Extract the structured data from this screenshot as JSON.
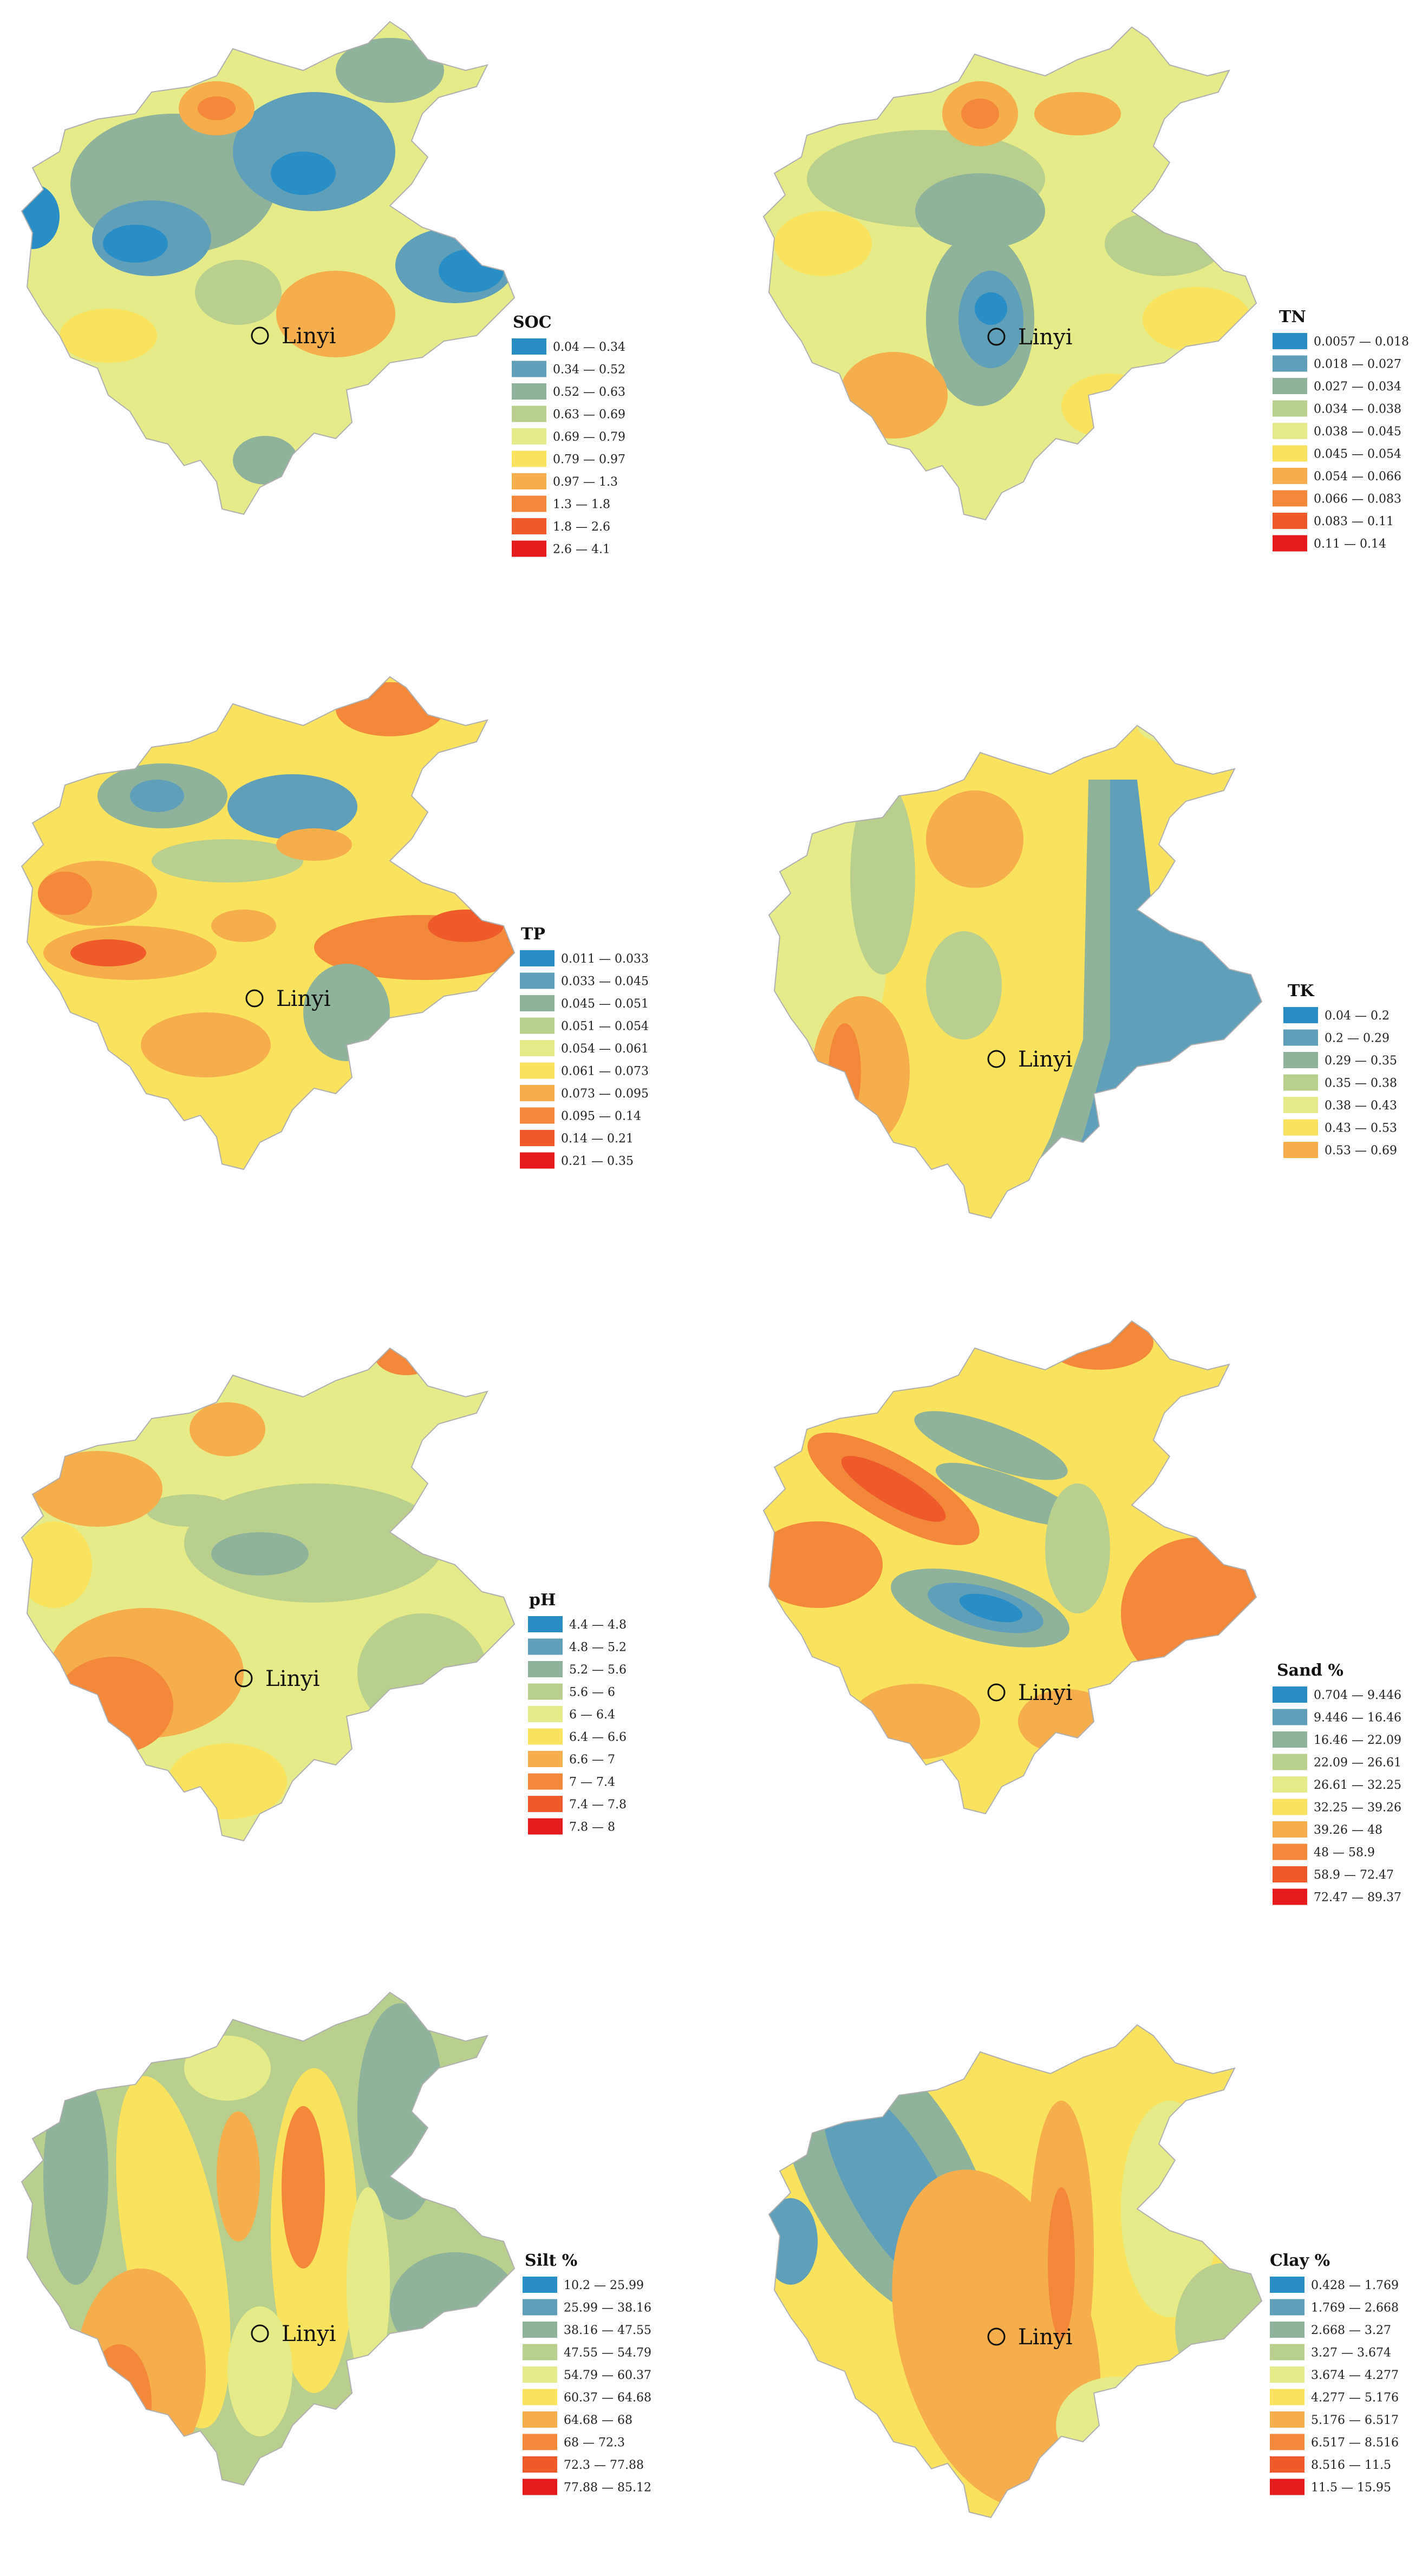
{
  "palette": [
    "#2a8ec6",
    "#5f9fb9",
    "#8eb39a",
    "#b8cf8e",
    "#e4eb88",
    "#f9e35e",
    "#f6ad4b",
    "#f3873a",
    "#ee5a2a",
    "#e41a1c"
  ],
  "city_label": "Linyi",
  "maps": [
    {
      "id": "soc",
      "title": "SOC",
      "legend": [
        "0.04 — 0.34",
        "0.34 — 0.52",
        "0.52 — 0.63",
        "0.63 — 0.69",
        "0.69 — 0.79",
        "0.79 — 0.97",
        "0.97 — 1.3",
        "1.3 — 1.8",
        "1.8 — 2.6",
        "2.6 — 4.1"
      ]
    },
    {
      "id": "tn",
      "title": "TN",
      "legend": [
        "0.0057 — 0.018",
        "0.018 — 0.027",
        "0.027 — 0.034",
        "0.034 — 0.038",
        "0.038 — 0.045",
        "0.045 — 0.054",
        "0.054 — 0.066",
        "0.066 — 0.083",
        "0.083 — 0.11",
        "0.11 — 0.14"
      ]
    },
    {
      "id": "tp",
      "title": "TP",
      "legend": [
        "0.011 — 0.033",
        "0.033 — 0.045",
        "0.045 — 0.051",
        "0.051 — 0.054",
        "0.054 — 0.061",
        "0.061 — 0.073",
        "0.073 — 0.095",
        "0.095 — 0.14",
        "0.14 — 0.21",
        "0.21 — 0.35"
      ]
    },
    {
      "id": "tk",
      "title": "TK",
      "legend": [
        "0.04 — 0.2",
        "0.2 — 0.29",
        "0.29 — 0.35",
        "0.35 — 0.38",
        "0.38 — 0.43",
        "0.43 — 0.53",
        "0.53 — 0.69"
      ]
    },
    {
      "id": "ph",
      "title": "pH",
      "legend": [
        "4.4 — 4.8",
        "4.8 — 5.2",
        "5.2 — 5.6",
        "5.6 — 6",
        "6 — 6.4",
        "6.4 — 6.6",
        "6.6 — 7",
        "7 — 7.4",
        "7.4 — 7.8",
        "7.8 — 8"
      ]
    },
    {
      "id": "sand",
      "title": "Sand  %",
      "legend": [
        "0.704 — 9.446",
        "9.446 — 16.46",
        "16.46 — 22.09",
        "22.09 — 26.61",
        "26.61 — 32.25",
        "32.25 — 39.26",
        "39.26 — 48",
        "48 — 58.9",
        "58.9 — 72.47",
        "72.47 — 89.37"
      ]
    },
    {
      "id": "silt",
      "title": "Silt  %",
      "legend": [
        "10.2 — 25.99",
        "25.99 — 38.16",
        "38.16 — 47.55",
        "47.55 — 54.79",
        "54.79 — 60.37",
        "60.37 — 64.68",
        "64.68 — 68",
        "68 — 72.3",
        "72.3 — 77.88",
        "77.88 — 85.12"
      ]
    },
    {
      "id": "clay",
      "title": "Clay  %",
      "legend": [
        "0.428 — 1.769",
        "1.769 — 2.668",
        "2.668 — 3.27",
        "3.27 — 3.674",
        "3.674 — 4.277",
        "4.277 — 5.176",
        "5.176 — 6.517",
        "6.517 — 8.516",
        "8.516 — 11.5",
        "11.5 — 15.95"
      ]
    }
  ]
}
